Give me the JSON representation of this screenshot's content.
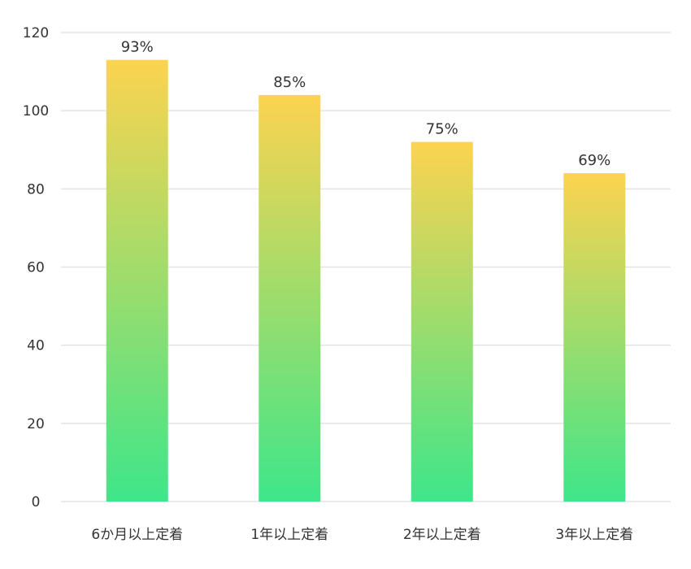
{
  "chart_data": {
    "type": "bar",
    "categories": [
      "6か月以上定着",
      "1年以上定着",
      "2年以上定着",
      "3年以上定着"
    ],
    "values": [
      113,
      104,
      92,
      84
    ],
    "data_labels": [
      "93%",
      "85%",
      "75%",
      "69%"
    ],
    "y_ticks": [
      "0",
      "20",
      "40",
      "60",
      "80",
      "100",
      "120"
    ],
    "ylim": [
      0,
      120
    ],
    "grid": true,
    "legend": "none",
    "colors": {
      "bar_top": "#fcd34f",
      "bar_bottom": "#3ee68a",
      "grid": "#e3e3e3",
      "text": "#333333"
    }
  }
}
